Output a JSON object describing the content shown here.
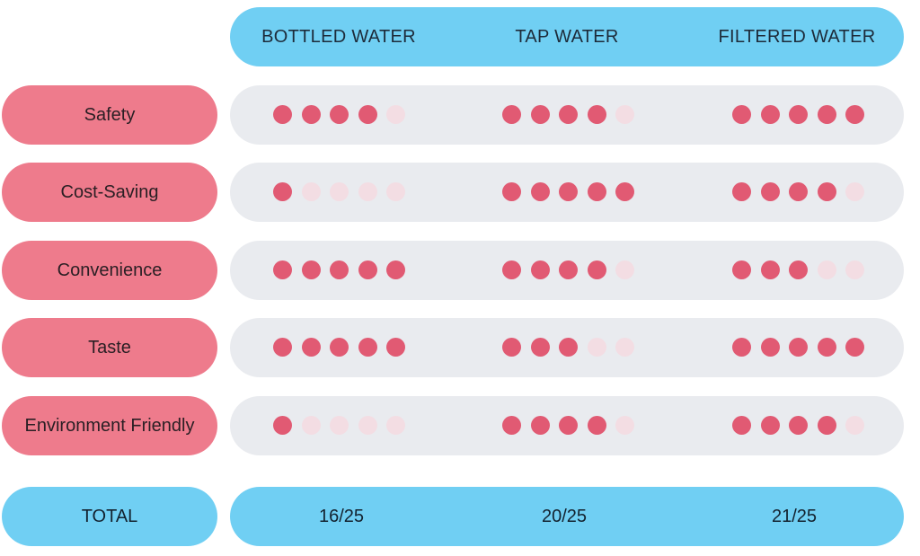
{
  "chart_data": {
    "type": "table",
    "columns": [
      "BOTTLED WATER",
      "TAP WATER",
      "FILTERED WATER"
    ],
    "rows": [
      {
        "label": "Safety",
        "values": [
          4,
          4,
          5
        ]
      },
      {
        "label": "Cost-Saving",
        "values": [
          1,
          5,
          4
        ]
      },
      {
        "label": "Convenience",
        "values": [
          5,
          4,
          3
        ]
      },
      {
        "label": "Taste",
        "values": [
          5,
          3,
          5
        ]
      },
      {
        "label": "Environment Friendly",
        "values": [
          1,
          4,
          4
        ]
      }
    ],
    "max_score": 5,
    "total_label": "TOTAL",
    "totals": [
      "16/25",
      "20/25",
      "21/25"
    ]
  },
  "colors": {
    "header": "#70cff3",
    "row_label": "#ee7b8c",
    "track": "#e9ebef",
    "dot_on": "#e15a73",
    "dot_off": "#f3dde3"
  }
}
